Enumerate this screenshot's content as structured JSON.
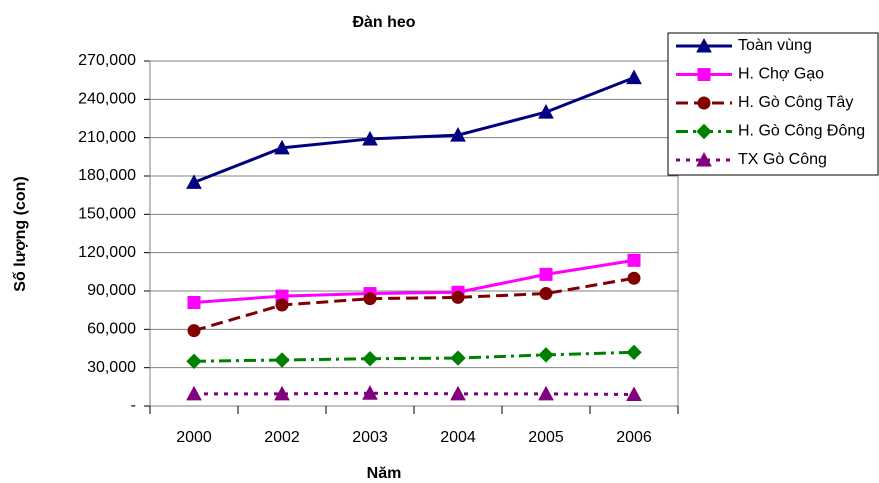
{
  "chart_data": {
    "type": "line",
    "title": "Đàn heo",
    "x_label": "Năm",
    "y_label": "Số lượng (con)",
    "categories": [
      "2000",
      "2002",
      "2003",
      "2004",
      "2005",
      "2006"
    ],
    "ylim": [
      0,
      270000
    ],
    "yticks": [
      {
        "value": 0,
        "label": "-"
      },
      {
        "value": 30000,
        "label": "30,000"
      },
      {
        "value": 60000,
        "label": "60,000"
      },
      {
        "value": 90000,
        "label": "90,000"
      },
      {
        "value": 120000,
        "label": "120,000"
      },
      {
        "value": 150000,
        "label": "150,000"
      },
      {
        "value": 180000,
        "label": "180,000"
      },
      {
        "value": 210000,
        "label": "210,000"
      },
      {
        "value": 240000,
        "label": "240,000"
      },
      {
        "value": 270000,
        "label": "270,000"
      }
    ],
    "grid": true,
    "legend": "right",
    "series": [
      {
        "name": "Toàn vùng",
        "color": "#000080",
        "marker": "triangle",
        "dash": "solid",
        "values": [
          175000,
          202000,
          209000,
          212000,
          230000,
          257000
        ]
      },
      {
        "name": "H. Chợ Gạo",
        "color": "#ff00ff",
        "marker": "square",
        "dash": "solid",
        "values": [
          81000,
          86000,
          88000,
          89000,
          103000,
          114000
        ]
      },
      {
        "name": "H. Gò Công Tây",
        "color": "#800000",
        "marker": "circle",
        "dash": "dashed",
        "values": [
          59000,
          79000,
          84000,
          85000,
          88000,
          100000
        ]
      },
      {
        "name": "H. Gò Công Đông",
        "color": "#008000",
        "marker": "diamond",
        "dash": "dashdot",
        "values": [
          35000,
          36000,
          37000,
          37500,
          40000,
          42000
        ]
      },
      {
        "name": "TX Gò Công",
        "color": "#800080",
        "marker": "triangle",
        "dash": "dotted",
        "values": [
          9500,
          9500,
          10000,
          9500,
          9500,
          9000
        ]
      }
    ]
  }
}
